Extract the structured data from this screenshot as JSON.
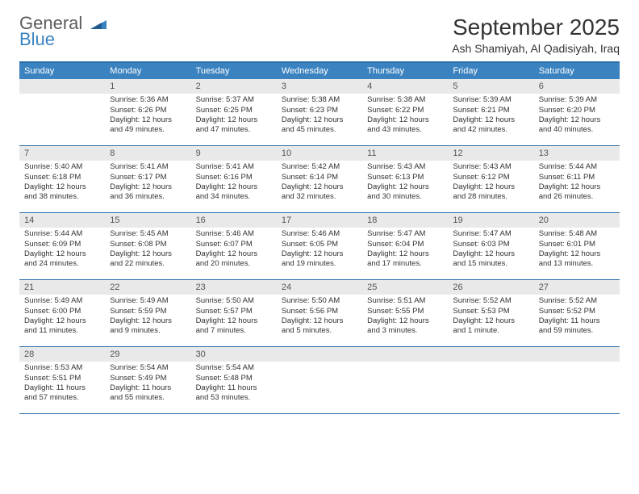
{
  "brand": {
    "word1": "General",
    "word2": "Blue"
  },
  "header": {
    "month": "September 2025",
    "location": "Ash Shamiyah, Al Qadisiyah, Iraq"
  },
  "colors": {
    "header_bar": "#3b83c0",
    "border": "#2b6ea8",
    "daynum_bg": "#e9e9e9",
    "text": "#333333"
  },
  "daysOfWeek": [
    "Sunday",
    "Monday",
    "Tuesday",
    "Wednesday",
    "Thursday",
    "Friday",
    "Saturday"
  ],
  "weeks": [
    [
      {
        "n": "",
        "sunrise": "",
        "sunset": "",
        "daylight": ""
      },
      {
        "n": "1",
        "sunrise": "Sunrise: 5:36 AM",
        "sunset": "Sunset: 6:26 PM",
        "daylight": "Daylight: 12 hours and 49 minutes."
      },
      {
        "n": "2",
        "sunrise": "Sunrise: 5:37 AM",
        "sunset": "Sunset: 6:25 PM",
        "daylight": "Daylight: 12 hours and 47 minutes."
      },
      {
        "n": "3",
        "sunrise": "Sunrise: 5:38 AM",
        "sunset": "Sunset: 6:23 PM",
        "daylight": "Daylight: 12 hours and 45 minutes."
      },
      {
        "n": "4",
        "sunrise": "Sunrise: 5:38 AM",
        "sunset": "Sunset: 6:22 PM",
        "daylight": "Daylight: 12 hours and 43 minutes."
      },
      {
        "n": "5",
        "sunrise": "Sunrise: 5:39 AM",
        "sunset": "Sunset: 6:21 PM",
        "daylight": "Daylight: 12 hours and 42 minutes."
      },
      {
        "n": "6",
        "sunrise": "Sunrise: 5:39 AM",
        "sunset": "Sunset: 6:20 PM",
        "daylight": "Daylight: 12 hours and 40 minutes."
      }
    ],
    [
      {
        "n": "7",
        "sunrise": "Sunrise: 5:40 AM",
        "sunset": "Sunset: 6:18 PM",
        "daylight": "Daylight: 12 hours and 38 minutes."
      },
      {
        "n": "8",
        "sunrise": "Sunrise: 5:41 AM",
        "sunset": "Sunset: 6:17 PM",
        "daylight": "Daylight: 12 hours and 36 minutes."
      },
      {
        "n": "9",
        "sunrise": "Sunrise: 5:41 AM",
        "sunset": "Sunset: 6:16 PM",
        "daylight": "Daylight: 12 hours and 34 minutes."
      },
      {
        "n": "10",
        "sunrise": "Sunrise: 5:42 AM",
        "sunset": "Sunset: 6:14 PM",
        "daylight": "Daylight: 12 hours and 32 minutes."
      },
      {
        "n": "11",
        "sunrise": "Sunrise: 5:43 AM",
        "sunset": "Sunset: 6:13 PM",
        "daylight": "Daylight: 12 hours and 30 minutes."
      },
      {
        "n": "12",
        "sunrise": "Sunrise: 5:43 AM",
        "sunset": "Sunset: 6:12 PM",
        "daylight": "Daylight: 12 hours and 28 minutes."
      },
      {
        "n": "13",
        "sunrise": "Sunrise: 5:44 AM",
        "sunset": "Sunset: 6:11 PM",
        "daylight": "Daylight: 12 hours and 26 minutes."
      }
    ],
    [
      {
        "n": "14",
        "sunrise": "Sunrise: 5:44 AM",
        "sunset": "Sunset: 6:09 PM",
        "daylight": "Daylight: 12 hours and 24 minutes."
      },
      {
        "n": "15",
        "sunrise": "Sunrise: 5:45 AM",
        "sunset": "Sunset: 6:08 PM",
        "daylight": "Daylight: 12 hours and 22 minutes."
      },
      {
        "n": "16",
        "sunrise": "Sunrise: 5:46 AM",
        "sunset": "Sunset: 6:07 PM",
        "daylight": "Daylight: 12 hours and 20 minutes."
      },
      {
        "n": "17",
        "sunrise": "Sunrise: 5:46 AM",
        "sunset": "Sunset: 6:05 PM",
        "daylight": "Daylight: 12 hours and 19 minutes."
      },
      {
        "n": "18",
        "sunrise": "Sunrise: 5:47 AM",
        "sunset": "Sunset: 6:04 PM",
        "daylight": "Daylight: 12 hours and 17 minutes."
      },
      {
        "n": "19",
        "sunrise": "Sunrise: 5:47 AM",
        "sunset": "Sunset: 6:03 PM",
        "daylight": "Daylight: 12 hours and 15 minutes."
      },
      {
        "n": "20",
        "sunrise": "Sunrise: 5:48 AM",
        "sunset": "Sunset: 6:01 PM",
        "daylight": "Daylight: 12 hours and 13 minutes."
      }
    ],
    [
      {
        "n": "21",
        "sunrise": "Sunrise: 5:49 AM",
        "sunset": "Sunset: 6:00 PM",
        "daylight": "Daylight: 12 hours and 11 minutes."
      },
      {
        "n": "22",
        "sunrise": "Sunrise: 5:49 AM",
        "sunset": "Sunset: 5:59 PM",
        "daylight": "Daylight: 12 hours and 9 minutes."
      },
      {
        "n": "23",
        "sunrise": "Sunrise: 5:50 AM",
        "sunset": "Sunset: 5:57 PM",
        "daylight": "Daylight: 12 hours and 7 minutes."
      },
      {
        "n": "24",
        "sunrise": "Sunrise: 5:50 AM",
        "sunset": "Sunset: 5:56 PM",
        "daylight": "Daylight: 12 hours and 5 minutes."
      },
      {
        "n": "25",
        "sunrise": "Sunrise: 5:51 AM",
        "sunset": "Sunset: 5:55 PM",
        "daylight": "Daylight: 12 hours and 3 minutes."
      },
      {
        "n": "26",
        "sunrise": "Sunrise: 5:52 AM",
        "sunset": "Sunset: 5:53 PM",
        "daylight": "Daylight: 12 hours and 1 minute."
      },
      {
        "n": "27",
        "sunrise": "Sunrise: 5:52 AM",
        "sunset": "Sunset: 5:52 PM",
        "daylight": "Daylight: 11 hours and 59 minutes."
      }
    ],
    [
      {
        "n": "28",
        "sunrise": "Sunrise: 5:53 AM",
        "sunset": "Sunset: 5:51 PM",
        "daylight": "Daylight: 11 hours and 57 minutes."
      },
      {
        "n": "29",
        "sunrise": "Sunrise: 5:54 AM",
        "sunset": "Sunset: 5:49 PM",
        "daylight": "Daylight: 11 hours and 55 minutes."
      },
      {
        "n": "30",
        "sunrise": "Sunrise: 5:54 AM",
        "sunset": "Sunset: 5:48 PM",
        "daylight": "Daylight: 11 hours and 53 minutes."
      },
      {
        "n": "",
        "sunrise": "",
        "sunset": "",
        "daylight": ""
      },
      {
        "n": "",
        "sunrise": "",
        "sunset": "",
        "daylight": ""
      },
      {
        "n": "",
        "sunrise": "",
        "sunset": "",
        "daylight": ""
      },
      {
        "n": "",
        "sunrise": "",
        "sunset": "",
        "daylight": ""
      }
    ]
  ]
}
